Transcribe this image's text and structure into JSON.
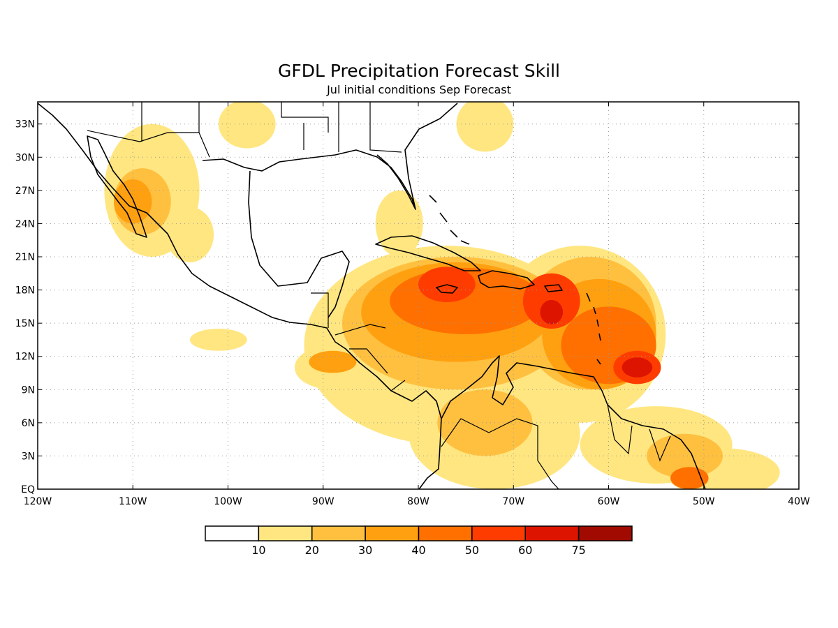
{
  "title": "GFDL Precipitation Forecast Skill",
  "subtitle": "Jul initial conditions  Sep Forecast",
  "map": {
    "lon_range": [
      -120,
      -40
    ],
    "lat_range": [
      0,
      35
    ],
    "x_ticks": [
      {
        "lon": -120,
        "label": "120W"
      },
      {
        "lon": -110,
        "label": "110W"
      },
      {
        "lon": -100,
        "label": "100W"
      },
      {
        "lon": -90,
        "label": "90W"
      },
      {
        "lon": -80,
        "label": "80W"
      },
      {
        "lon": -70,
        "label": "70W"
      },
      {
        "lon": -60,
        "label": "60W"
      },
      {
        "lon": -50,
        "label": "50W"
      },
      {
        "lon": -40,
        "label": "40W"
      }
    ],
    "y_ticks": [
      {
        "lat": 0,
        "label": "EQ"
      },
      {
        "lat": 3,
        "label": "3N"
      },
      {
        "lat": 6,
        "label": "6N"
      },
      {
        "lat": 9,
        "label": "9N"
      },
      {
        "lat": 12,
        "label": "12N"
      },
      {
        "lat": 15,
        "label": "15N"
      },
      {
        "lat": 18,
        "label": "18N"
      },
      {
        "lat": 21,
        "label": "21N"
      },
      {
        "lat": 24,
        "label": "24N"
      },
      {
        "lat": 27,
        "label": "27N"
      },
      {
        "lat": 30,
        "label": "30N"
      },
      {
        "lat": 33,
        "label": "33N"
      }
    ],
    "grid": true
  },
  "colorbar": {
    "levels": [
      "10",
      "20",
      "30",
      "40",
      "50",
      "60",
      "75"
    ],
    "colors": [
      "#ffffff",
      "#ffe680",
      "#ffc040",
      "#ffa010",
      "#ff7000",
      "#ff3c00",
      "#dc1400",
      "#a00a00"
    ]
  },
  "skill_regions": [
    {
      "level": 1,
      "lon": -77,
      "lat": 13,
      "rx": 15,
      "ry": 9
    },
    {
      "level": 1,
      "lon": -63,
      "lat": 14,
      "rx": 9,
      "ry": 8
    },
    {
      "level": 1,
      "lon": -72,
      "lat": 5,
      "rx": 9,
      "ry": 5
    },
    {
      "level": 1,
      "lon": -55,
      "lat": 4,
      "rx": 8,
      "ry": 3.5
    },
    {
      "level": 1,
      "lon": -48,
      "lat": 1.5,
      "rx": 6,
      "ry": 2.2
    },
    {
      "level": 1,
      "lon": -108,
      "lat": 27,
      "rx": 5,
      "ry": 6
    },
    {
      "level": 1,
      "lon": -104,
      "lat": 23,
      "rx": 2.5,
      "ry": 2.5
    },
    {
      "level": 1,
      "lon": -98,
      "lat": 33,
      "rx": 3,
      "ry": 2.2
    },
    {
      "level": 1,
      "lon": -73,
      "lat": 33,
      "rx": 3,
      "ry": 2.5
    },
    {
      "level": 1,
      "lon": -82,
      "lat": 24,
      "rx": 2.5,
      "ry": 3
    },
    {
      "level": 1,
      "lon": -101,
      "lat": 13.5,
      "rx": 3,
      "ry": 1
    },
    {
      "level": 1,
      "lon": -89,
      "lat": 11,
      "rx": 4,
      "ry": 2
    },
    {
      "level": 2,
      "lon": -76,
      "lat": 15,
      "rx": 12,
      "ry": 6
    },
    {
      "level": 2,
      "lon": -62,
      "lat": 15,
      "rx": 7,
      "ry": 6
    },
    {
      "level": 2,
      "lon": -73,
      "lat": 6,
      "rx": 5,
      "ry": 3
    },
    {
      "level": 2,
      "lon": -52,
      "lat": 3,
      "rx": 4,
      "ry": 2
    },
    {
      "level": 2,
      "lon": -109,
      "lat": 26,
      "rx": 3,
      "ry": 3
    },
    {
      "level": 3,
      "lon": -76,
      "lat": 16,
      "rx": 10,
      "ry": 4.5
    },
    {
      "level": 3,
      "lon": -61,
      "lat": 14,
      "rx": 6,
      "ry": 5
    },
    {
      "level": 3,
      "lon": -89,
      "lat": 11.5,
      "rx": 2.5,
      "ry": 1
    },
    {
      "level": 3,
      "lon": -110,
      "lat": 26,
      "rx": 2,
      "ry": 2
    },
    {
      "level": 4,
      "lon": -75,
      "lat": 17,
      "rx": 8,
      "ry": 3
    },
    {
      "level": 4,
      "lon": -60,
      "lat": 13,
      "rx": 5,
      "ry": 3.5
    },
    {
      "level": 4,
      "lon": -51.5,
      "lat": 1,
      "rx": 2,
      "ry": 1
    },
    {
      "level": 5,
      "lon": -77,
      "lat": 18.5,
      "rx": 3,
      "ry": 1.6
    },
    {
      "level": 5,
      "lon": -66,
      "lat": 17,
      "rx": 3,
      "ry": 2.5
    },
    {
      "level": 5,
      "lon": -57,
      "lat": 11,
      "rx": 2.5,
      "ry": 1.5
    },
    {
      "level": 6,
      "lon": -57,
      "lat": 11,
      "rx": 1.6,
      "ry": 0.9
    },
    {
      "level": 6,
      "lon": -66,
      "lat": 16,
      "rx": 1.2,
      "ry": 1.1
    }
  ]
}
